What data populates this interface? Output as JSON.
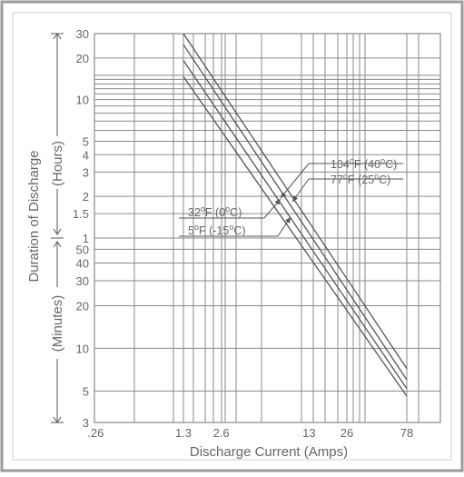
{
  "chart_data": {
    "type": "line",
    "title": "",
    "xlabel": "Discharge Current (Amps)",
    "ylabel": "Duration of Discharge",
    "ylabel_hours": "(Hours)",
    "ylabel_minutes": "(Minutes)",
    "x_scale": "log",
    "x_ticks": [
      ".26",
      "1.3",
      "2.6",
      "13",
      "26",
      "78"
    ],
    "x_tick_values": [
      0.26,
      1.3,
      2.6,
      13,
      26,
      78
    ],
    "y_ticks_hours": [
      "30",
      "20",
      "10",
      "5",
      "4",
      "3",
      "2",
      "1.5",
      "1"
    ],
    "y_tick_hours_values": [
      30,
      20,
      10,
      5,
      4,
      3,
      2,
      1.5,
      1
    ],
    "y_ticks_minutes": [
      "50",
      "40",
      "30",
      "20",
      "10",
      "5",
      "3"
    ],
    "y_tick_minutes_values": [
      50,
      40,
      30,
      20,
      10,
      5,
      3
    ],
    "grid": true,
    "series": [
      {
        "name": "104°F (40°C)",
        "x": [
          1.3,
          78
        ],
        "y_minutes": [
          1800,
          7.2
        ],
        "label_lines": [
          "104",
          "F (40",
          "C)"
        ]
      },
      {
        "name": "77°F (25°C)",
        "x": [
          1.3,
          78
        ],
        "y_minutes": [
          1500,
          6.0
        ],
        "label_lines": [
          "77",
          "F (25",
          "C)"
        ]
      },
      {
        "name": "32°F (0°C)",
        "x": [
          1.3,
          78
        ],
        "y_minutes": [
          1150,
          5.2
        ],
        "label_lines": [
          "32",
          "F (0",
          "C)"
        ]
      },
      {
        "name": "5°F (-15°C)",
        "x": [
          1.3,
          78
        ],
        "y_minutes": [
          880,
          4.6
        ],
        "label_lines": [
          "5",
          "F (-15",
          "C)"
        ]
      }
    ],
    "colors": {
      "line": "#555555",
      "grid": "#8a8a8a",
      "text": "#666666"
    }
  }
}
